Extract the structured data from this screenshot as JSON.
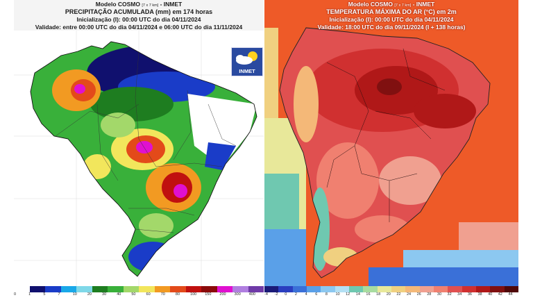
{
  "left": {
    "model_line": "Modelo COSMO",
    "model_res": "[7 x 7 km]",
    "model_org": "- INMET",
    "title": "PRECIPITAÇÃO ACUMULADA (mm) em 174 horas",
    "init": "Inicialização (I): 00:00 UTC do dia 04/11/2024",
    "validity": "Validade: entre 00:00 UTC do dia 04/11/2024 e 06:00 UTC do dia 11/11/2024",
    "logo_text": "INMET",
    "legend_colors": [
      "#ffffff",
      "#10106e",
      "#1a3cc8",
      "#19a8e8",
      "#7fd8e8",
      "#1e7d20",
      "#39b03a",
      "#a3d86a",
      "#f2e65c",
      "#f29a22",
      "#e34a1a",
      "#c0100f",
      "#8b0a0a",
      "#e010d0",
      "#b07ee0",
      "#6f3aa8"
    ],
    "legend_ticks": [
      "0",
      "1",
      "5",
      "7",
      "10",
      "20",
      "30",
      "40",
      "50",
      "60",
      "70",
      "80",
      "100",
      "150",
      "200",
      "300",
      "400"
    ]
  },
  "right": {
    "model_line": "Modelo COSMO",
    "model_res": "[7 x 7 km]",
    "model_org": "- INMET",
    "title": "TEMPERATURA MÁXIMA DO AR (°C) em 2m",
    "init": "Inicialização (I): 00:00 UTC do dia 04/11/2024",
    "validity": "Validade: 18:00 UTC do dia 09/11/2024 (I + 138 horas)",
    "legend_colors": [
      "#1a1a78",
      "#2a3ec0",
      "#3a70d8",
      "#5aa0e8",
      "#8cc8f0",
      "#b4e0f4",
      "#6fc8b0",
      "#a8dca0",
      "#e8e89a",
      "#f0d080",
      "#f4b878",
      "#f0a090",
      "#f08070",
      "#e05050",
      "#d03030",
      "#b01818",
      "#801010",
      "#500808"
    ],
    "legend_ticks": [
      "-4",
      "-2",
      "0",
      "2",
      "4",
      "6",
      "8",
      "10",
      "12",
      "14",
      "16",
      "18",
      "20",
      "22",
      "24",
      "26",
      "28",
      "30",
      "32",
      "34",
      "36",
      "38",
      "40",
      "42",
      "44"
    ]
  }
}
